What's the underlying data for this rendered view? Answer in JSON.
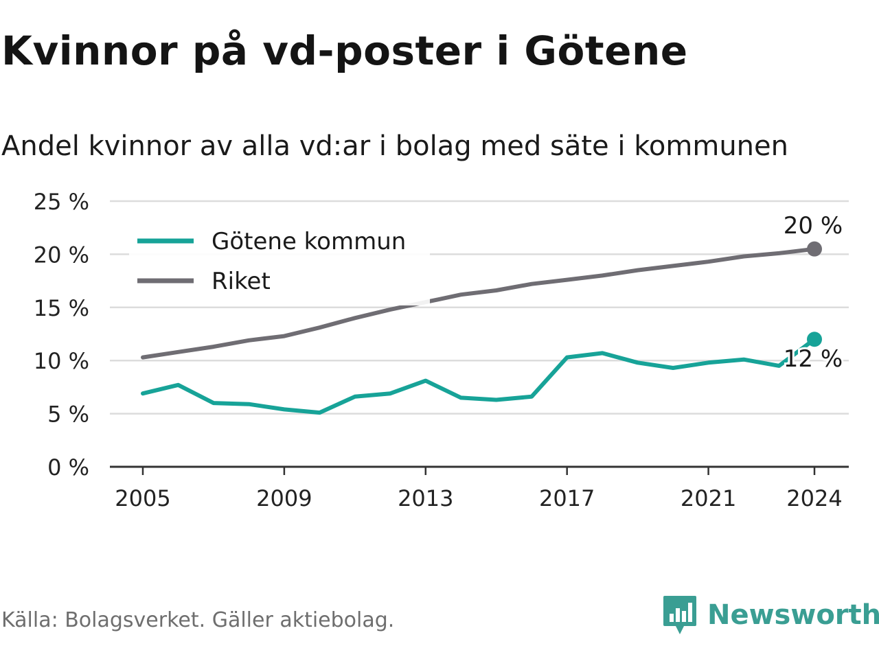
{
  "title": "Kvinnor på vd-poster i Götene",
  "subtitle": "Andel kvinnor av alla vd:ar i bolag med säte i kommunen",
  "source": "Källa: Bolagsverket. Gäller aktiebolag.",
  "brand": "Newsworthy",
  "colors": {
    "gotene": "#17a398",
    "riket": "#6f6d73",
    "grid": "#dcdcdc",
    "axis": "#333333"
  },
  "chart_data": {
    "type": "line",
    "x": [
      2005,
      2006,
      2007,
      2008,
      2009,
      2010,
      2011,
      2012,
      2013,
      2014,
      2015,
      2016,
      2017,
      2018,
      2019,
      2020,
      2021,
      2022,
      2023,
      2024
    ],
    "x_ticks": [
      "2005",
      "2009",
      "2013",
      "2017",
      "2021",
      "2024"
    ],
    "y_ticks": [
      "0 %",
      "5 %",
      "10 %",
      "15 %",
      "20 %",
      "25 %"
    ],
    "ylim": [
      0,
      25
    ],
    "grid": true,
    "legend_position": "top-left",
    "series": [
      {
        "name": "Götene kommun",
        "color": "#17a398",
        "values": [
          6.9,
          7.7,
          6.0,
          5.9,
          5.4,
          5.1,
          6.6,
          6.9,
          8.1,
          6.5,
          6.3,
          6.6,
          10.3,
          10.7,
          9.8,
          9.3,
          9.8,
          10.1,
          9.5,
          12.0
        ],
        "end_label": "12 %"
      },
      {
        "name": "Riket",
        "color": "#6f6d73",
        "values": [
          10.3,
          10.8,
          11.3,
          11.9,
          12.3,
          13.1,
          14.0,
          14.8,
          15.5,
          16.2,
          16.6,
          17.2,
          17.6,
          18.0,
          18.5,
          18.9,
          19.3,
          19.8,
          20.1,
          20.5
        ],
        "end_label": "20 %"
      }
    ]
  }
}
